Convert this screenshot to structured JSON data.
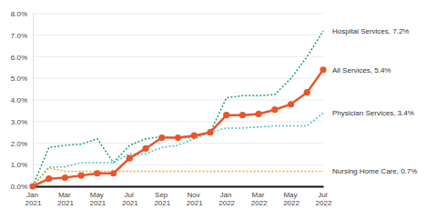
{
  "chart_data": {
    "type": "line",
    "categories": [
      "Jan 2021",
      null,
      "Mar 2021",
      null,
      "May 2021",
      null,
      "Jul 2021",
      null,
      "Sep 2021",
      null,
      "Nov 2021",
      null,
      "Jan 2022",
      null,
      "Mar 2022",
      null,
      "May 2022",
      null,
      "Jul 2022"
    ],
    "ylim": [
      0,
      8
    ],
    "yticks": [
      {
        "value": 0,
        "label": "0.0%"
      },
      {
        "value": 1,
        "label": "1.0%"
      },
      {
        "value": 2,
        "label": "2.0%"
      },
      {
        "value": 3,
        "label": "3.0%"
      },
      {
        "value": 4,
        "label": "4.0%"
      },
      {
        "value": 5,
        "label": "5.0%"
      },
      {
        "value": 6,
        "label": "6.0%"
      },
      {
        "value": 7,
        "label": "7.0%"
      },
      {
        "value": 8,
        "label": "8.0%"
      }
    ],
    "grid": true,
    "series": [
      {
        "name": "Hospital Services, 7.2%",
        "color": "#1a9e84",
        "line_style": "dotted",
        "values": [
          0,
          1.8,
          1.9,
          1.95,
          2.2,
          1.1,
          1.9,
          2.2,
          2.3,
          2.25,
          2.25,
          2.5,
          4.1,
          4.2,
          4.2,
          4.25,
          5.0,
          6.0,
          7.2
        ]
      },
      {
        "name": "Physician Services, 3.4%",
        "color": "#4fc1c9",
        "line_style": "dotted",
        "values": [
          0,
          0.9,
          0.9,
          1.1,
          1.1,
          1.1,
          1.5,
          1.5,
          1.8,
          1.9,
          2.2,
          2.5,
          2.7,
          2.7,
          2.75,
          2.8,
          2.8,
          2.8,
          3.4
        ]
      },
      {
        "name": "Nursing Home Care, 0.7%",
        "color": "#f5a623",
        "line_style": "dotted",
        "values": [
          0,
          0.85,
          0.7,
          0.7,
          0.7,
          0.7,
          0.7,
          0.7,
          0.7,
          0.7,
          0.7,
          0.7,
          0.7,
          0.7,
          0.7,
          0.7,
          0.7,
          0.7,
          0.7
        ]
      },
      {
        "name": "All Services, 5.4%",
        "color": "#e8562a",
        "line_style": "solid",
        "marker": "circle",
        "values": [
          0,
          0.35,
          0.4,
          0.5,
          0.6,
          0.6,
          1.3,
          1.75,
          2.25,
          2.25,
          2.35,
          2.5,
          3.3,
          3.3,
          3.35,
          3.55,
          3.8,
          4.35,
          5.4
        ]
      }
    ]
  }
}
